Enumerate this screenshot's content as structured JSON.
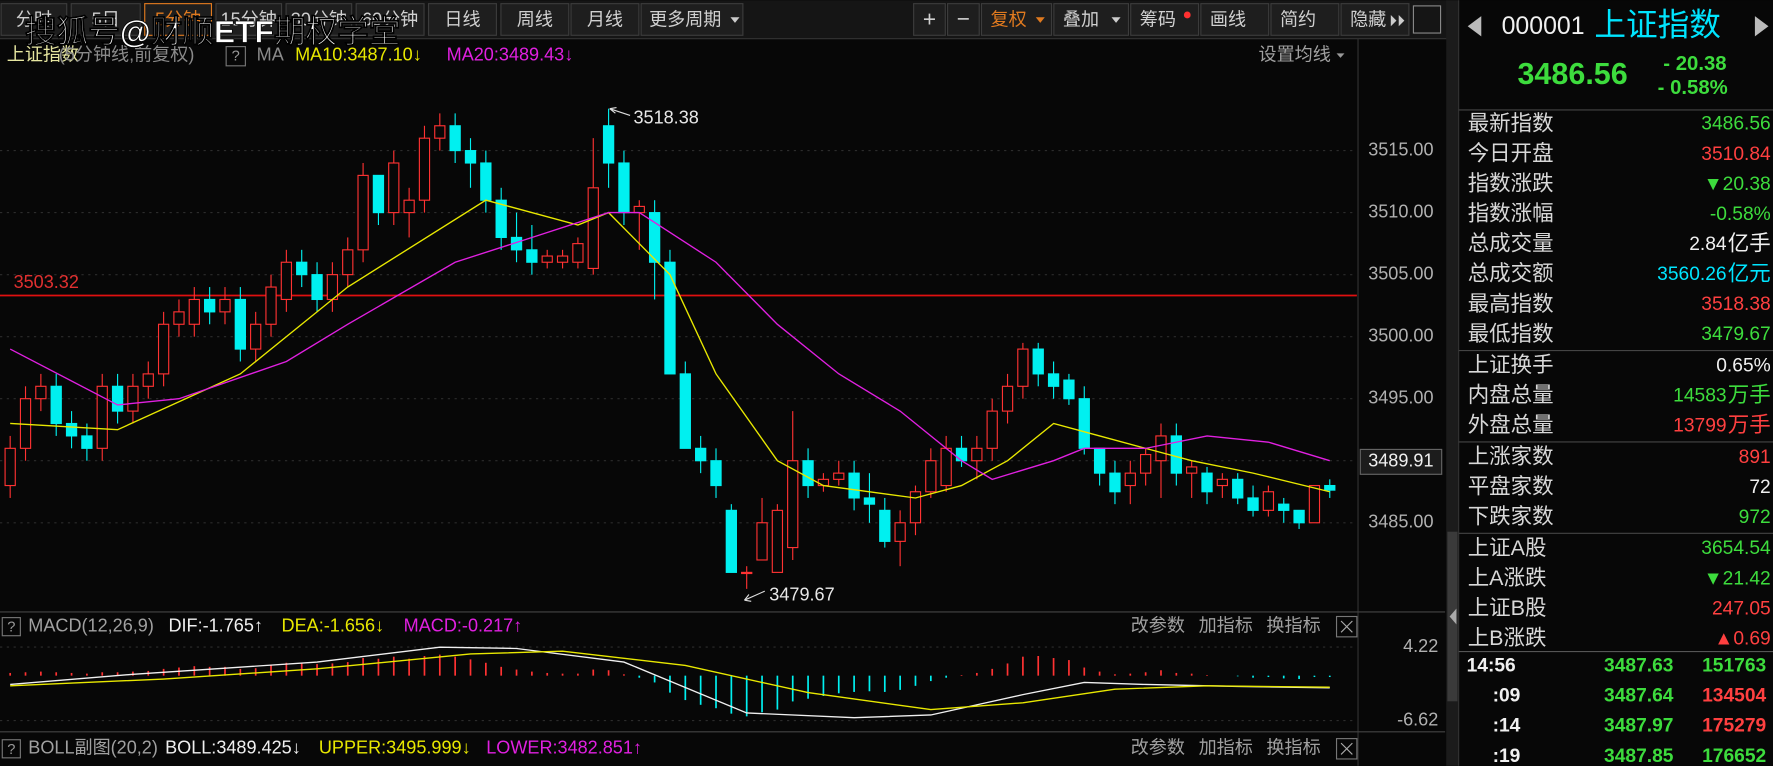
{
  "watermark": "搜狐号@财顺ETF期权学堂",
  "toolbar": {
    "periods": [
      "分时",
      "5日",
      "5分钟",
      "15分钟",
      "30分钟",
      "60分钟",
      "日线",
      "周线",
      "月线",
      "更多周期"
    ],
    "active": 2,
    "tools": [
      "+",
      "−",
      "复权",
      "叠加",
      "筹码",
      "画线",
      "简约",
      "隐藏"
    ]
  },
  "main_chart": {
    "header": {
      "name": "上证指数",
      "period": "(5分钟线,前复权)",
      "help": "?",
      "ma": "MA",
      "ma10": "MA10:3487.10↓",
      "ma20": "MA20:3489.43↓",
      "settings": "设置均线"
    },
    "ylim": [
      3477.9,
      3521.65
    ],
    "yticks": [
      {
        "value": 3485,
        "label": "3485.00"
      },
      {
        "value": 3490,
        "label": "3490.00"
      },
      {
        "value": 3495,
        "label": "3495.00"
      },
      {
        "value": 3500,
        "label": "3500.00"
      },
      {
        "value": 3505,
        "label": "3505.00"
      },
      {
        "value": 3510,
        "label": "3510.00"
      },
      {
        "value": 3515,
        "label": "3515.00"
      }
    ],
    "grid": true,
    "ref_line": 3503.32,
    "last_price": 3489.91,
    "up_color": "#ff3232",
    "down_color": "#00f0f0",
    "candles": {
      "open": [
        3488,
        3491,
        3495,
        3496,
        3493,
        3492,
        3491,
        3496,
        3494,
        3496,
        3497,
        3501,
        3501,
        3503,
        3502,
        3503,
        3499,
        3501,
        3503,
        3506,
        3505,
        3503,
        3505,
        3507,
        3513,
        3510,
        3510,
        3511,
        3516,
        3517,
        3515,
        3514,
        3511,
        3508,
        3507,
        3506,
        3506,
        3506,
        3505.5,
        3517,
        3514,
        3510,
        3510,
        3506,
        3497,
        3491,
        3490,
        3486,
        3481,
        3482,
        3481,
        3483,
        3490,
        3488,
        3488.5,
        3489,
        3487,
        3486,
        3483.5,
        3485,
        3487.5,
        3488,
        3491,
        3490,
        3491,
        3494,
        3496,
        3499,
        3497,
        3496.5,
        3495,
        3491,
        3489,
        3488,
        3489,
        3490,
        3492,
        3489,
        3489,
        3488,
        3488.5,
        3487,
        3486,
        3486.5,
        3486,
        3485,
        3488
      ],
      "high": [
        3492,
        3496,
        3497,
        3497,
        3494,
        3493,
        3497,
        3497,
        3497,
        3498,
        3502,
        3503,
        3504,
        3504,
        3504,
        3504,
        3502,
        3505,
        3507,
        3507,
        3506,
        3506,
        3508,
        3514,
        3513,
        3515,
        3512,
        3517,
        3518,
        3518,
        3516,
        3515,
        3512,
        3510,
        3509,
        3507,
        3507,
        3508,
        3516,
        3518.38,
        3515,
        3511,
        3511,
        3507,
        3498,
        3492,
        3491,
        3486.5,
        3481.5,
        3487,
        3486.5,
        3494,
        3491,
        3489,
        3490,
        3490,
        3489,
        3487,
        3486,
        3488,
        3491,
        3492,
        3492,
        3492,
        3495,
        3497,
        3499.5,
        3499.5,
        3498,
        3497,
        3496,
        3491,
        3490,
        3490,
        3491,
        3493,
        3493,
        3490,
        3489.5,
        3489,
        3489,
        3488,
        3488,
        3487,
        3486,
        3488,
        3488.5
      ],
      "low": [
        3487,
        3490,
        3494,
        3492,
        3491,
        3490,
        3490,
        3493,
        3493,
        3495,
        3496,
        3500,
        3500,
        3501,
        3501,
        3498,
        3498,
        3500,
        3502,
        3504,
        3502,
        3502,
        3504,
        3506,
        3509,
        3509,
        3508,
        3510,
        3515,
        3514,
        3512,
        3510,
        3507,
        3506,
        3505,
        3505.5,
        3505.5,
        3505.5,
        3505,
        3512,
        3509,
        3507,
        3503,
        3497,
        3491,
        3489,
        3487,
        3481,
        3479.67,
        3482,
        3481,
        3482,
        3487,
        3487.5,
        3488,
        3486,
        3485,
        3483,
        3481.5,
        3484,
        3487,
        3487.5,
        3489.5,
        3488.5,
        3490,
        3493,
        3495,
        3496,
        3495,
        3494.5,
        3490.5,
        3488,
        3486.5,
        3486.5,
        3488,
        3487,
        3488,
        3487,
        3486.5,
        3487,
        3486.5,
        3485.5,
        3485.5,
        3485,
        3484.5,
        3485,
        3487
      ],
      "close": [
        3491,
        3495,
        3496,
        3493,
        3492,
        3491,
        3496,
        3494,
        3496,
        3497,
        3501,
        3502,
        3503,
        3502,
        3503,
        3499,
        3501,
        3504,
        3506,
        3505,
        3503,
        3505,
        3507,
        3513,
        3510,
        3514,
        3511,
        3516,
        3517,
        3515,
        3514,
        3511,
        3508,
        3507,
        3506,
        3506.5,
        3506.5,
        3507.5,
        3512,
        3514,
        3510,
        3510.5,
        3506,
        3497,
        3491,
        3490,
        3488,
        3481,
        3481,
        3485,
        3486,
        3490,
        3488,
        3488.5,
        3489,
        3487,
        3486.5,
        3483.5,
        3485,
        3487.5,
        3490,
        3491,
        3490,
        3491,
        3494,
        3496,
        3499,
        3497,
        3496,
        3495,
        3491,
        3489,
        3487.5,
        3489,
        3490.5,
        3492,
        3489,
        3489.5,
        3487.5,
        3488.5,
        3487,
        3486,
        3487.5,
        3486,
        3485,
        3488,
        3487.63
      ]
    },
    "ma10": {
      "color": "#e8e800",
      "x": [
        0,
        7,
        15,
        22,
        31,
        37,
        39,
        43,
        46,
        50,
        53,
        59,
        62,
        65,
        68,
        71,
        74,
        77,
        81,
        86
      ],
      "values": [
        3493,
        3492.5,
        3497,
        3504,
        3511,
        3509,
        3510,
        3505,
        3497,
        3490,
        3488,
        3487,
        3488,
        3490,
        3493,
        3492,
        3491,
        3490,
        3489,
        3487.5
      ]
    },
    "ma20": {
      "color": "#e020e0",
      "x": [
        0,
        7,
        11,
        18,
        22,
        29,
        34,
        39,
        41,
        46,
        50,
        54,
        58,
        62,
        64,
        68,
        70,
        74,
        78,
        82,
        86
      ],
      "values": [
        3499,
        3494.5,
        3495,
        3498,
        3501,
        3506,
        3508,
        3510,
        3510,
        3506,
        3501,
        3497,
        3494,
        3490,
        3488.5,
        3490,
        3491,
        3491,
        3492,
        3491.5,
        3490
      ]
    }
  },
  "macd_chart": {
    "header": {
      "help": "?",
      "title": "MACD(12,26,9)",
      "dif": "DIF:-1.765↑",
      "dea": "DEA:-1.656↓",
      "macd": "MACD:-0.217↑"
    },
    "ylim": [
      -7.95,
      5.39
    ],
    "yticks": [
      4.22,
      -6.62
    ],
    "hist": [
      0.4,
      0.5,
      0.6,
      0.5,
      0.4,
      0.3,
      0.5,
      0.5,
      0.6,
      0.7,
      1.0,
      1.2,
      1.4,
      1.3,
      1.3,
      1.0,
      1.1,
      1.5,
      1.9,
      1.9,
      1.7,
      1.8,
      2.0,
      2.6,
      2.5,
      2.8,
      2.5,
      2.9,
      3.1,
      2.8,
      2.4,
      1.9,
      1.3,
      0.9,
      0.6,
      0.4,
      0.3,
      0.3,
      0.9,
      0.8,
      0.2,
      -0.3,
      -1.0,
      -2.5,
      -3.6,
      -4.3,
      -4.8,
      -5.6,
      -6.0,
      -5.4,
      -5.0,
      -3.8,
      -3.4,
      -3.0,
      -2.6,
      -2.4,
      -2.3,
      -2.4,
      -2.1,
      -1.5,
      -0.8,
      -0.3,
      0.1,
      0.4,
      1.0,
      1.8,
      2.8,
      2.9,
      2.6,
      2.3,
      1.2,
      0.6,
      0.2,
      0.3,
      0.5,
      0.8,
      0.4,
      0.3,
      0.1,
      0.0,
      -0.1,
      -0.3,
      -0.2,
      -0.4,
      -0.5,
      -0.2,
      -0.2
    ],
    "dif": {
      "color": "#f0f0f0",
      "x": [
        0,
        8,
        20,
        28,
        33,
        40,
        48,
        55,
        60,
        66,
        70,
        74,
        80,
        86
      ],
      "values": [
        -1.3,
        0.2,
        2.0,
        4.2,
        4.0,
        2.0,
        -5.5,
        -6.2,
        -5.8,
        -2.8,
        -1.0,
        -1.3,
        -1.6,
        -1.8
      ]
    },
    "dea": {
      "color": "#e8e800",
      "x": [
        0,
        10,
        20,
        30,
        36,
        44,
        52,
        60,
        66,
        72,
        78,
        86
      ],
      "values": [
        -1.5,
        -0.5,
        1.0,
        3.2,
        3.6,
        1.5,
        -2.5,
        -5.0,
        -4.0,
        -2.0,
        -1.5,
        -1.7
      ]
    }
  },
  "boll_chart": {
    "header": {
      "help": "?",
      "title": "BOLL副图(20,2)",
      "boll": "BOLL:3489.425↓",
      "upper": "UPPER:3495.999↓",
      "lower": "LOWER:3482.851↑"
    }
  },
  "panel_buttons": [
    "改参数",
    "加指标",
    "换指标"
  ],
  "quote": {
    "code": "000001",
    "name": "上证指数",
    "price": "3486.56",
    "change": "- 20.38",
    "change_pct": "- 0.58%",
    "rows": [
      [
        {
          "label": "最新指数",
          "value": "3486.56",
          "color": "#3ddc3d"
        },
        {
          "label": "今日开盘",
          "value": "3510.84",
          "color": "#ff4040"
        },
        {
          "label": "指数涨跌",
          "value": "▼20.38",
          "color": "#3ddc3d"
        },
        {
          "label": "指数涨幅",
          "value": "-0.58%",
          "color": "#3ddc3d"
        },
        {
          "label": "总成交量",
          "value": "2.84",
          "unit": "亿手",
          "color": "#f0f0f0"
        },
        {
          "label": "总成交额",
          "value": "3560.26",
          "unit": "亿元",
          "color": "#00e5ff"
        },
        {
          "label": "最高指数",
          "value": "3518.38",
          "color": "#ff4040"
        },
        {
          "label": "最低指数",
          "value": "3479.67",
          "color": "#3ddc3d"
        }
      ],
      [
        {
          "label": "上证换手",
          "value": "0.65%",
          "color": "#f0f0f0"
        },
        {
          "label": "内盘总量",
          "value": "14583",
          "unit": "万手",
          "color": "#3ddc3d"
        },
        {
          "label": "外盘总量",
          "value": "13799",
          "unit": "万手",
          "color": "#ff4040"
        }
      ],
      [
        {
          "label": "上涨家数",
          "value": "891",
          "color": "#ff4040"
        },
        {
          "label": "平盘家数",
          "value": "72",
          "color": "#f0f0f0"
        },
        {
          "label": "下跌家数",
          "value": "972",
          "color": "#3ddc3d"
        }
      ],
      [
        {
          "label": "上证A股",
          "value": "3654.54",
          "color": "#3ddc3d"
        },
        {
          "label": "上A涨跌",
          "value": "▼21.42",
          "color": "#3ddc3d"
        },
        {
          "label": "上证B股",
          "value": "247.05",
          "color": "#ff4040"
        },
        {
          "label": "上B涨跌",
          "value": "▲0.69",
          "color": "#ff4040"
        }
      ]
    ],
    "ticks": [
      {
        "time": "14:56",
        "price": "3487.63",
        "volume": "151763",
        "color": "#3ddc3d"
      },
      {
        "time": ":09",
        "price": "3487.64",
        "volume": "134504",
        "color": "#ff4040"
      },
      {
        "time": ":14",
        "price": "3487.97",
        "volume": "175279",
        "color": "#ff4040"
      },
      {
        "time": ":19",
        "price": "3487.85",
        "volume": "176652",
        "color": "#3ddc3d"
      }
    ]
  }
}
